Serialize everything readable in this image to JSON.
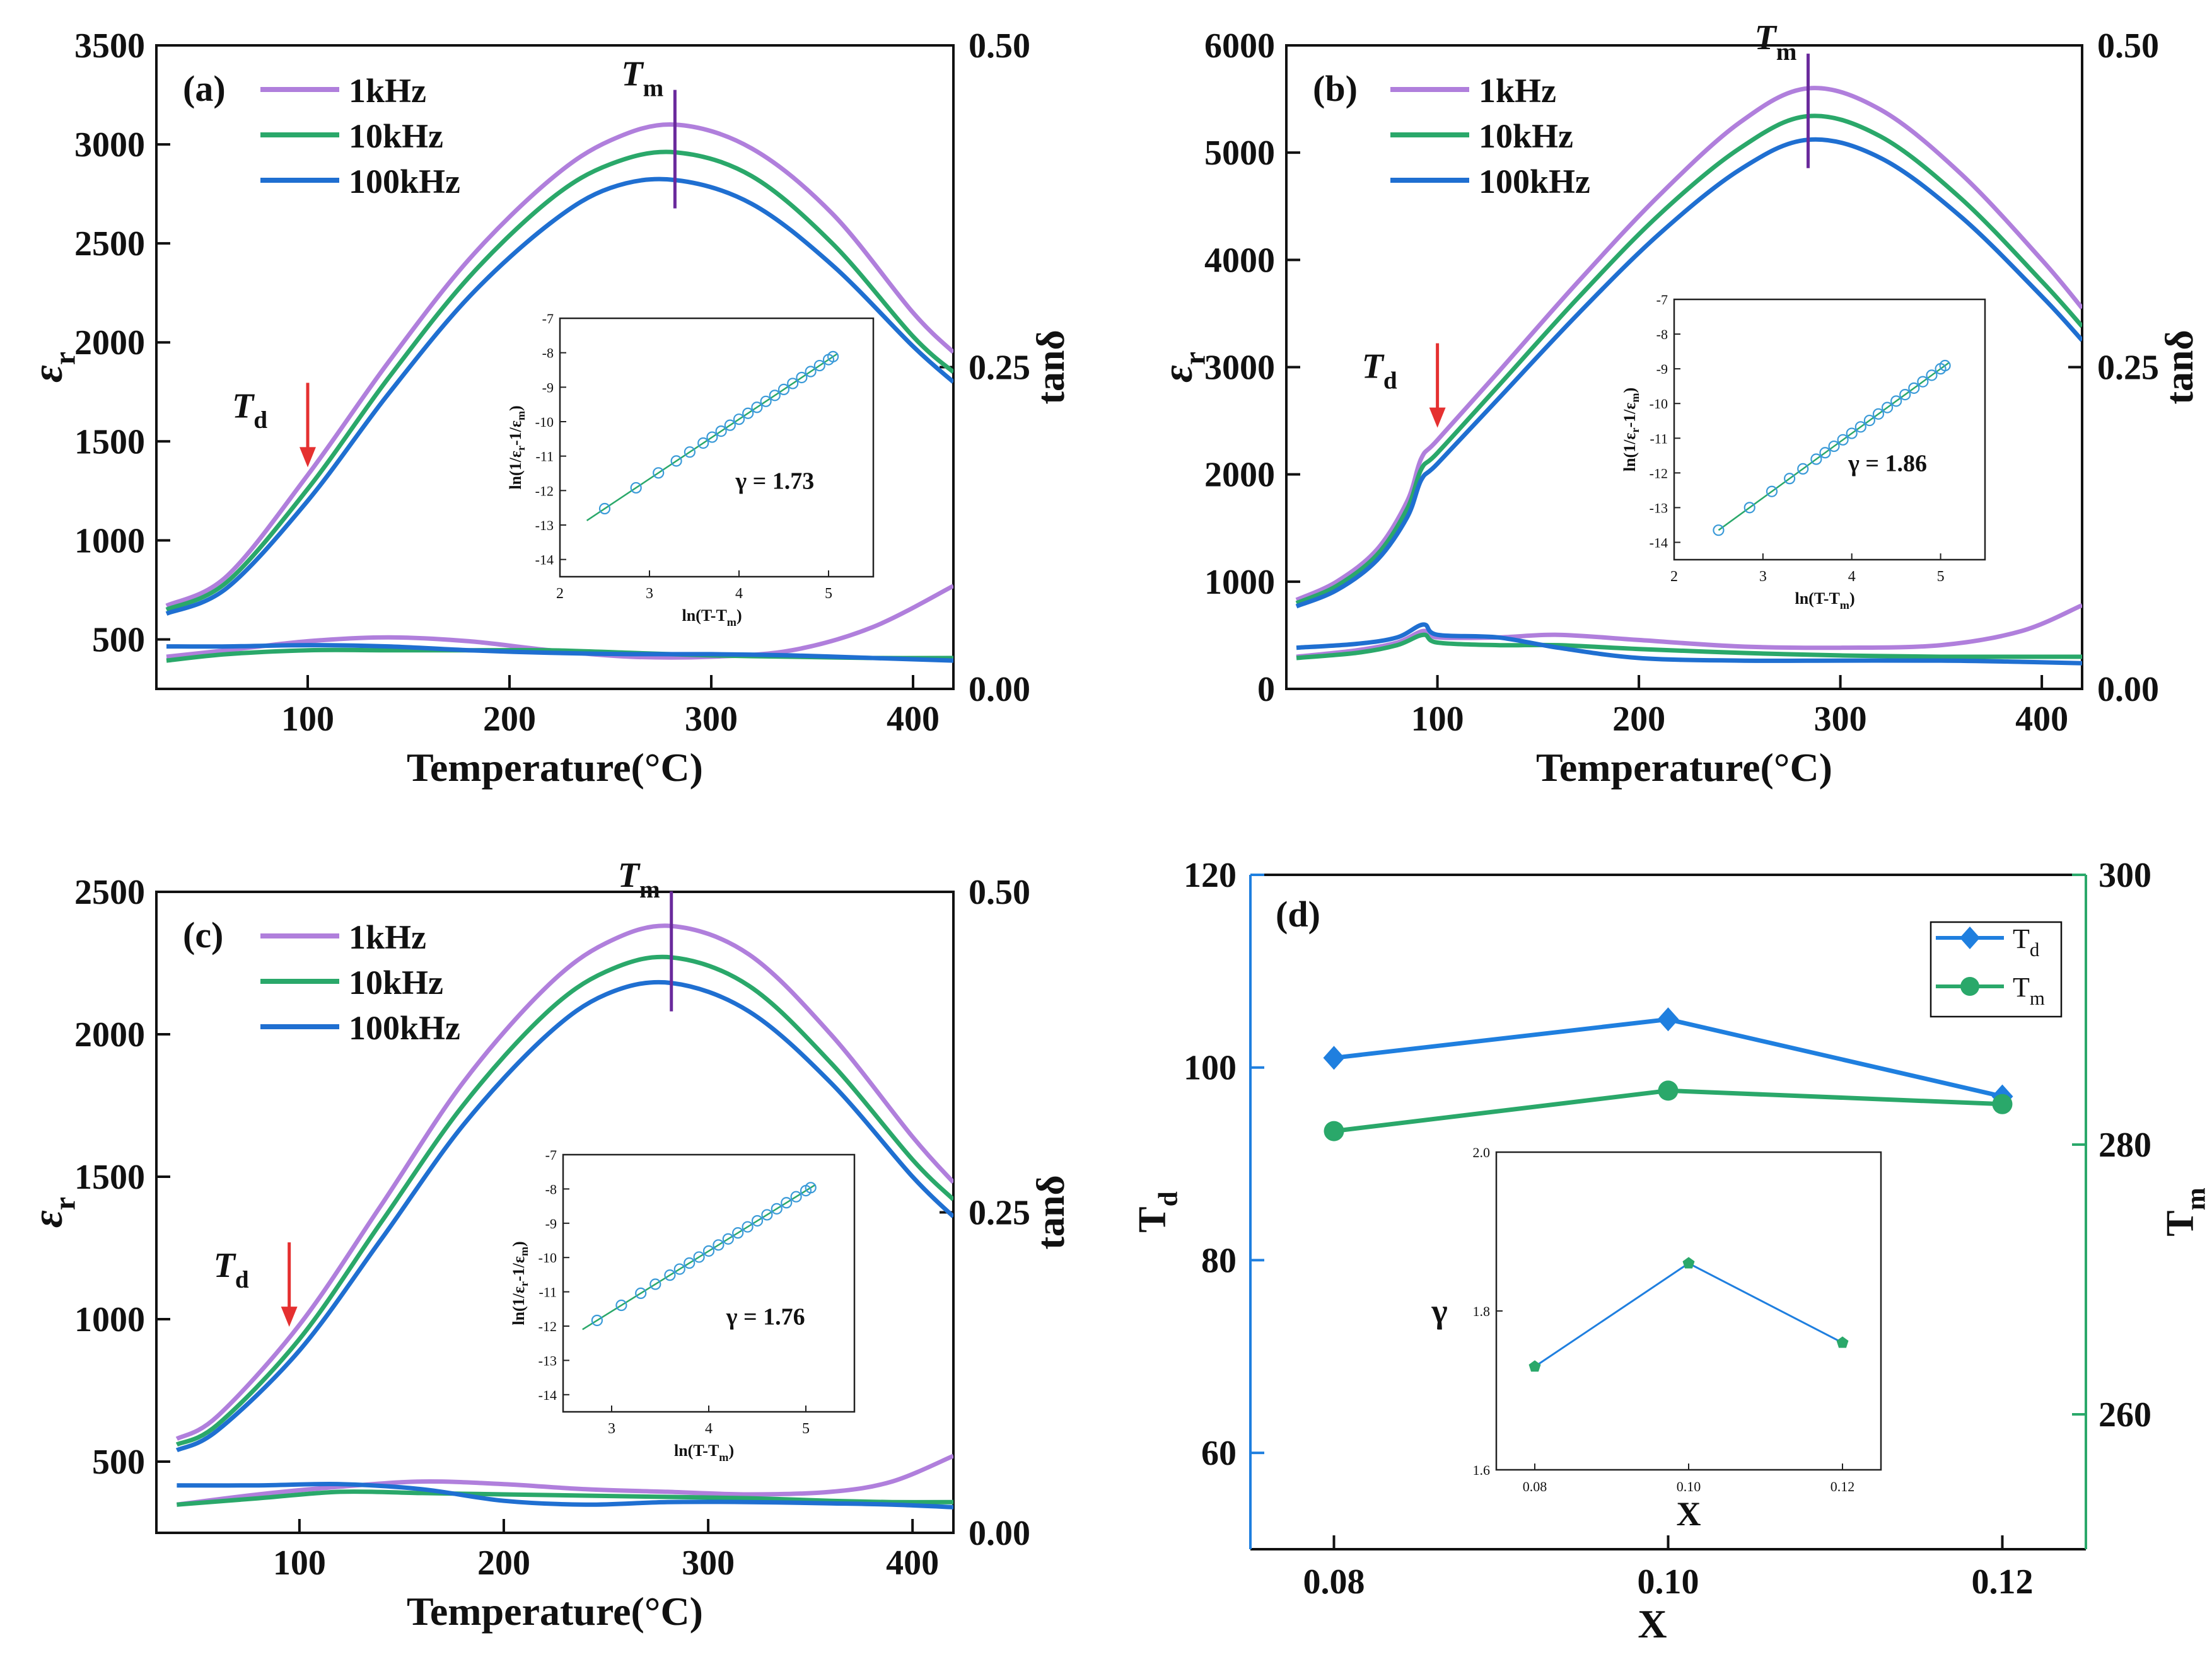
{
  "figure": "Dielectric properties vs temperature for three compositions and summary of Td, Tm and gamma",
  "colors": {
    "f1k": "#b07fdc",
    "f10k": "#2aa86a",
    "f100k": "#1f6fd1",
    "arrow": "#e53030",
    "tm_line": "#6a2a9c",
    "td_axis": "#1f7fdf",
    "tm_axis": "#2aa86a",
    "fit": "#2aa86a",
    "circle": "#3a9ad8",
    "gamma_text": "#b07fdc"
  },
  "chart_data": [
    {
      "type": "line",
      "panel_label": "(a)",
      "xlabel": "Temperature(°C)",
      "ylabel_main": "ε",
      "ylabel_sub": "r",
      "y2label": "tanδ",
      "xlim": [
        25,
        420
      ],
      "ylim": [
        250,
        3500
      ],
      "y2lim": [
        0,
        0.5
      ],
      "xticks": [
        100,
        200,
        300,
        400
      ],
      "yticks": [
        500,
        1000,
        1500,
        2000,
        2500,
        3000,
        3500
      ],
      "y2ticks": [
        "0.00",
        "0.25",
        "0.50"
      ],
      "y2tick_values": [
        0,
        0.25,
        0.5
      ],
      "legend": [
        "1kHz",
        "10kHz",
        "100kHz"
      ],
      "tm_label": "T",
      "tm_sub": "m",
      "td_label": "T",
      "td_sub": "d",
      "tm_x": 282,
      "td_x": 100,
      "td_y": 1350,
      "series": [
        {
          "name": "1kHz",
          "x": [
            30,
            60,
            100,
            140,
            180,
            220,
            250,
            282,
            320,
            360,
            400,
            420
          ],
          "y": [
            670,
            820,
            1330,
            1900,
            2420,
            2820,
            3020,
            3100,
            2980,
            2650,
            2150,
            1950
          ]
        },
        {
          "name": "10kHz",
          "x": [
            30,
            60,
            100,
            140,
            180,
            220,
            250,
            282,
            320,
            360,
            400,
            420
          ],
          "y": [
            650,
            790,
            1260,
            1820,
            2330,
            2720,
            2900,
            2960,
            2840,
            2500,
            2030,
            1850
          ]
        },
        {
          "name": "100kHz",
          "x": [
            30,
            60,
            100,
            140,
            180,
            220,
            250,
            282,
            320,
            360,
            400,
            420
          ],
          "y": [
            630,
            760,
            1200,
            1740,
            2230,
            2600,
            2780,
            2820,
            2700,
            2390,
            1980,
            1800
          ]
        }
      ],
      "tan_series": [
        {
          "name": "1kHz",
          "x": [
            30,
            60,
            100,
            140,
            180,
            220,
            260,
            300,
            340,
            380,
            420
          ],
          "y": [
            0.025,
            0.03,
            0.037,
            0.04,
            0.037,
            0.03,
            0.025,
            0.025,
            0.03,
            0.048,
            0.08
          ]
        },
        {
          "name": "10kHz",
          "x": [
            30,
            60,
            100,
            140,
            180,
            220,
            260,
            300,
            340,
            380,
            420
          ],
          "y": [
            0.022,
            0.027,
            0.03,
            0.03,
            0.03,
            0.03,
            0.028,
            0.026,
            0.025,
            0.024,
            0.024
          ]
        },
        {
          "name": "100kHz",
          "x": [
            30,
            60,
            100,
            140,
            180,
            220,
            260,
            300,
            340,
            380,
            420
          ],
          "y": [
            0.033,
            0.033,
            0.034,
            0.033,
            0.03,
            0.028,
            0.027,
            0.027,
            0.026,
            0.024,
            0.022
          ]
        }
      ],
      "inset": {
        "xlim": [
          2,
          5.5
        ],
        "ylim": [
          -14.5,
          -7
        ],
        "xticks": [
          2,
          3,
          4,
          5
        ],
        "yticks": [
          -14,
          -13,
          -12,
          -11,
          -10,
          -9,
          -8,
          -7
        ],
        "xlabel": "ln(T-T",
        "xlabel_sub": "m",
        "xlabel_end": ")",
        "ylabel": "ln(1/ε",
        "ylabel_sub1": "r",
        "ylabel_mid": "-1/ε",
        "ylabel_sub2": "m",
        "ylabel_end": ")",
        "fit_x": [
          2.3,
          5.1
        ],
        "slope": 1.73,
        "intercept": -16.85,
        "points_x": [
          2.5,
          2.85,
          3.1,
          3.3,
          3.45,
          3.6,
          3.7,
          3.8,
          3.9,
          4.0,
          4.1,
          4.2,
          4.3,
          4.4,
          4.5,
          4.6,
          4.7,
          4.8,
          4.9,
          5.0,
          5.05
        ],
        "gamma_text": "γ = 1.73"
      }
    },
    {
      "type": "line",
      "panel_label": "(b)",
      "xlabel": "Temperature(°C)",
      "ylabel_main": "ε",
      "ylabel_sub": "r",
      "y2label": "tanδ",
      "xlim": [
        25,
        420
      ],
      "ylim": [
        0,
        6000
      ],
      "y2lim": [
        0,
        0.5
      ],
      "xticks": [
        100,
        200,
        300,
        400
      ],
      "yticks": [
        0,
        1000,
        2000,
        3000,
        4000,
        5000,
        6000
      ],
      "y2ticks": [
        "0.00",
        "0.25",
        "0.50"
      ],
      "y2tick_values": [
        0,
        0.25,
        0.5
      ],
      "legend": [
        "1kHz",
        "10kHz",
        "100kHz"
      ],
      "tm_label": "T",
      "tm_sub": "m",
      "td_label": "T",
      "td_sub": "d",
      "tm_x": 284,
      "td_x": 100,
      "td_y": 2400,
      "series": [
        {
          "name": "1kHz",
          "x": [
            30,
            50,
            70,
            85,
            92,
            100,
            130,
            170,
            210,
            250,
            284,
            320,
            360,
            400,
            420
          ],
          "y": [
            830,
            1000,
            1300,
            1750,
            2150,
            2320,
            2950,
            3800,
            4600,
            5280,
            5600,
            5400,
            4800,
            4000,
            3550
          ]
        },
        {
          "name": "10kHz",
          "x": [
            30,
            50,
            70,
            85,
            92,
            100,
            130,
            170,
            210,
            250,
            284,
            320,
            360,
            400,
            420
          ],
          "y": [
            800,
            960,
            1250,
            1680,
            2050,
            2200,
            2820,
            3650,
            4420,
            5040,
            5340,
            5150,
            4570,
            3800,
            3380
          ]
        },
        {
          "name": "100kHz",
          "x": [
            30,
            50,
            70,
            85,
            92,
            100,
            130,
            170,
            210,
            250,
            284,
            320,
            360,
            400,
            420
          ],
          "y": [
            770,
            920,
            1200,
            1600,
            1950,
            2100,
            2700,
            3500,
            4240,
            4840,
            5120,
            4950,
            4400,
            3660,
            3250
          ]
        }
      ],
      "tan_series": [
        {
          "name": "1kHz",
          "x": [
            30,
            60,
            80,
            93,
            100,
            130,
            160,
            200,
            250,
            300,
            350,
            390,
            420
          ],
          "y": [
            0.025,
            0.03,
            0.036,
            0.045,
            0.04,
            0.04,
            0.042,
            0.038,
            0.033,
            0.032,
            0.034,
            0.045,
            0.065
          ]
        },
        {
          "name": "10kHz",
          "x": [
            30,
            60,
            80,
            93,
            100,
            130,
            160,
            200,
            250,
            300,
            350,
            390,
            420
          ],
          "y": [
            0.024,
            0.028,
            0.034,
            0.042,
            0.036,
            0.034,
            0.034,
            0.031,
            0.028,
            0.026,
            0.025,
            0.025,
            0.025
          ]
        },
        {
          "name": "100kHz",
          "x": [
            30,
            60,
            80,
            93,
            100,
            130,
            160,
            200,
            250,
            300,
            350,
            390,
            420
          ],
          "y": [
            0.032,
            0.035,
            0.04,
            0.05,
            0.042,
            0.04,
            0.032,
            0.024,
            0.022,
            0.022,
            0.022,
            0.021,
            0.02
          ]
        }
      ],
      "inset": {
        "xlim": [
          2,
          5.5
        ],
        "ylim": [
          -14.5,
          -7
        ],
        "xticks": [
          2,
          3,
          4,
          5
        ],
        "yticks": [
          -14,
          -13,
          -12,
          -11,
          -10,
          -9,
          -8,
          -7
        ],
        "xlabel": "ln(T-T",
        "xlabel_sub": "m",
        "xlabel_end": ")",
        "ylabel": "ln(1/ε",
        "ylabel_sub1": "r",
        "ylabel_mid": "-1/ε",
        "ylabel_sub2": "m",
        "ylabel_end": ")",
        "fit_x": [
          2.5,
          5.1
        ],
        "slope": 1.86,
        "intercept": -18.3,
        "points_x": [
          2.5,
          2.85,
          3.1,
          3.3,
          3.45,
          3.6,
          3.7,
          3.8,
          3.9,
          4.0,
          4.1,
          4.2,
          4.3,
          4.4,
          4.5,
          4.6,
          4.7,
          4.8,
          4.9,
          5.0,
          5.05
        ],
        "gamma_text": "γ = 1.86"
      }
    },
    {
      "type": "line",
      "panel_label": "(c)",
      "xlabel": "Temperature(°C)",
      "ylabel_main": "ε",
      "ylabel_sub": "r",
      "y2label": "tanδ",
      "xlim": [
        30,
        420
      ],
      "ylim": [
        250,
        2500
      ],
      "y2lim": [
        0,
        0.5
      ],
      "xticks": [
        100,
        200,
        300,
        400
      ],
      "yticks": [
        500,
        1000,
        1500,
        2000,
        2500
      ],
      "y2ticks": [
        "0.00",
        "0.25",
        "0.50"
      ],
      "y2tick_values": [
        0,
        0.25,
        0.5
      ],
      "legend": [
        "1kHz",
        "10kHz",
        "100kHz"
      ],
      "tm_label": "T",
      "tm_sub": "m",
      "td_label": "T",
      "td_sub": "d",
      "tm_x": 282,
      "td_x": 95,
      "td_y": 960,
      "series": [
        {
          "name": "1kHz",
          "x": [
            40,
            60,
            100,
            140,
            180,
            220,
            250,
            282,
            320,
            360,
            400,
            420
          ],
          "y": [
            580,
            660,
            980,
            1400,
            1830,
            2160,
            2320,
            2380,
            2280,
            2000,
            1640,
            1480
          ]
        },
        {
          "name": "10kHz",
          "x": [
            40,
            60,
            100,
            140,
            180,
            220,
            250,
            282,
            320,
            360,
            400,
            420
          ],
          "y": [
            560,
            630,
            930,
            1340,
            1750,
            2070,
            2220,
            2270,
            2170,
            1900,
            1560,
            1420
          ]
        },
        {
          "name": "100kHz",
          "x": [
            40,
            60,
            100,
            140,
            180,
            220,
            250,
            282,
            320,
            360,
            400,
            420
          ],
          "y": [
            540,
            610,
            890,
            1280,
            1680,
            1990,
            2140,
            2180,
            2080,
            1830,
            1500,
            1360
          ]
        }
      ],
      "tan_series": [
        {
          "name": "1kHz",
          "x": [
            40,
            80,
            120,
            160,
            200,
            240,
            280,
            320,
            360,
            390,
            420
          ],
          "y": [
            0.022,
            0.03,
            0.036,
            0.04,
            0.038,
            0.034,
            0.032,
            0.03,
            0.032,
            0.04,
            0.06
          ]
        },
        {
          "name": "10kHz",
          "x": [
            40,
            80,
            120,
            160,
            200,
            240,
            280,
            320,
            360,
            390,
            420
          ],
          "y": [
            0.022,
            0.027,
            0.032,
            0.031,
            0.03,
            0.029,
            0.028,
            0.027,
            0.025,
            0.024,
            0.024
          ]
        },
        {
          "name": "100kHz",
          "x": [
            40,
            80,
            120,
            160,
            200,
            240,
            280,
            320,
            360,
            390,
            420
          ],
          "y": [
            0.037,
            0.037,
            0.038,
            0.034,
            0.025,
            0.022,
            0.024,
            0.024,
            0.023,
            0.022,
            0.02
          ]
        }
      ],
      "inset": {
        "xlim": [
          2.5,
          5.5
        ],
        "ylim": [
          -14.5,
          -7
        ],
        "xticks": [
          3,
          4,
          5
        ],
        "yticks": [
          -14,
          -13,
          -12,
          -11,
          -10,
          -9,
          -8,
          -7
        ],
        "xlabel": "ln(T-T",
        "xlabel_sub": "m",
        "xlabel_end": ")",
        "ylabel": "ln(1/ε",
        "ylabel_sub1": "r",
        "ylabel_mid": "-1/ε",
        "ylabel_sub2": "m",
        "ylabel_end": ")",
        "fit_x": [
          2.7,
          5.1
        ],
        "slope": 1.76,
        "intercept": -16.85,
        "points_x": [
          2.85,
          3.1,
          3.3,
          3.45,
          3.6,
          3.7,
          3.8,
          3.9,
          4.0,
          4.1,
          4.2,
          4.3,
          4.4,
          4.5,
          4.6,
          4.7,
          4.8,
          4.9,
          5.0,
          5.05
        ],
        "gamma_text": "γ = 1.76"
      }
    },
    {
      "type": "line",
      "panel_label": "(d)",
      "xlabel": "X",
      "ylabel": "T",
      "ylabel_sub": "d",
      "y2label": "T",
      "y2label_sub": "m",
      "xlim": [
        0.075,
        0.125
      ],
      "ylim": [
        50,
        120
      ],
      "y2lim": [
        250,
        300
      ],
      "xticks": [
        "0.08",
        "0.10",
        "0.12"
      ],
      "xtick_values": [
        0.08,
        0.1,
        0.12
      ],
      "yticks": [
        60,
        80,
        100,
        120
      ],
      "y2ticks": [
        260,
        280,
        300
      ],
      "legend": [
        {
          "label": "T",
          "sub": "d"
        },
        {
          "label": "T",
          "sub": "m"
        }
      ],
      "series": [
        {
          "name": "Td",
          "x": [
            0.08,
            0.1,
            0.12
          ],
          "y": [
            101,
            105,
            97
          ]
        },
        {
          "name": "Tm",
          "x": [
            0.08,
            0.1,
            0.12
          ],
          "y2": [
            281,
            284,
            283
          ]
        }
      ],
      "inset": {
        "xlim": [
          0.075,
          0.125
        ],
        "ylim": [
          1.6,
          2.0
        ],
        "xticks": [
          "0.08",
          "0.10",
          "0.12"
        ],
        "xtick_values": [
          0.08,
          0.1,
          0.12
        ],
        "yticks": [
          "1.6",
          "1.8",
          "2.0"
        ],
        "ytick_values": [
          1.6,
          1.8,
          2.0
        ],
        "xlabel": "X",
        "ylabel": "γ",
        "x": [
          0.08,
          0.1,
          0.12
        ],
        "y": [
          1.73,
          1.86,
          1.76
        ]
      }
    }
  ]
}
